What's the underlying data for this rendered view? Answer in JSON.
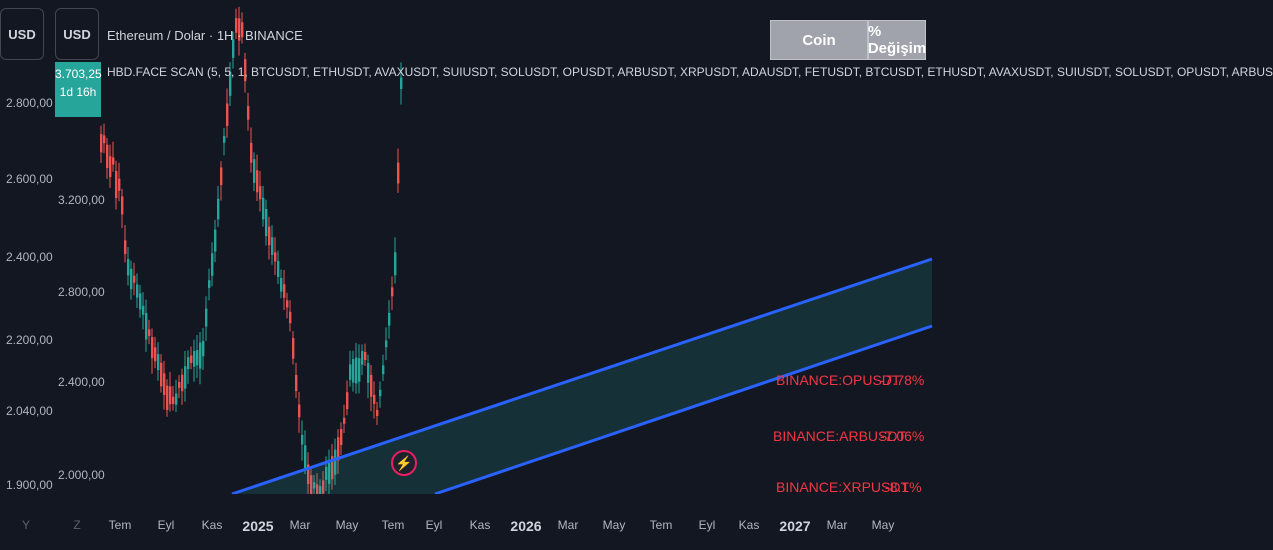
{
  "toolbar": {
    "currency_left": "USD",
    "currency_right": "USD"
  },
  "header": {
    "title": "Ethereum / Dolar · 1H · BINANCE",
    "indicator": "HBD.FACE SCAN (5, 5, 1, BTCUSDT, ETHUSDT, AVAXUSDT, SUIUSDT, SOLUSDT, OPUSDT, ARBUSDT, XRPUSDT, ADAUSDT, FETUSDT, BTCUSDT, ETHUSDT, AVAXUSDT, SUIUSDT, SOLUSDT, OPUSDT, ARBUS"
  },
  "price_tag": {
    "price": "3.703,25",
    "countdown": "1d 16h"
  },
  "left_axis": [
    "2.800,00",
    "2.600,00",
    "2.400,00",
    "2.200,00",
    "2.040,00",
    "1.900,00"
  ],
  "inner_axis": [
    "3.200,00",
    "2.800,00",
    "2.400,00",
    "2.000,00"
  ],
  "x_axis": {
    "nav_left": "Y",
    "nav_right": "Z",
    "labels": [
      "Tem",
      "Eyl",
      "Kas",
      "2025",
      "Mar",
      "May",
      "Tem",
      "Eyl",
      "Kas",
      "2026",
      "Mar",
      "May",
      "Tem",
      "Eyl",
      "Kas",
      "2027",
      "Mar",
      "May"
    ]
  },
  "table": {
    "col_coin": "Coin",
    "col_change": "% Değişim",
    "rows": [
      {
        "symbol": "BINANCE:OPUSDT",
        "change": "-7.78%"
      },
      {
        "symbol": "BINANCE:ARBUSDT",
        "change": "-7.06%"
      },
      {
        "symbol": "BINANCE:XRPUSDT",
        "change": "-8.1%"
      }
    ]
  },
  "colors": {
    "background": "#131722",
    "up": "#26a69a",
    "down": "#ef5350",
    "channel": "#2962ff",
    "table_text": "#f23645"
  },
  "icons": {
    "alert": "lightning-bolt-icon"
  }
}
